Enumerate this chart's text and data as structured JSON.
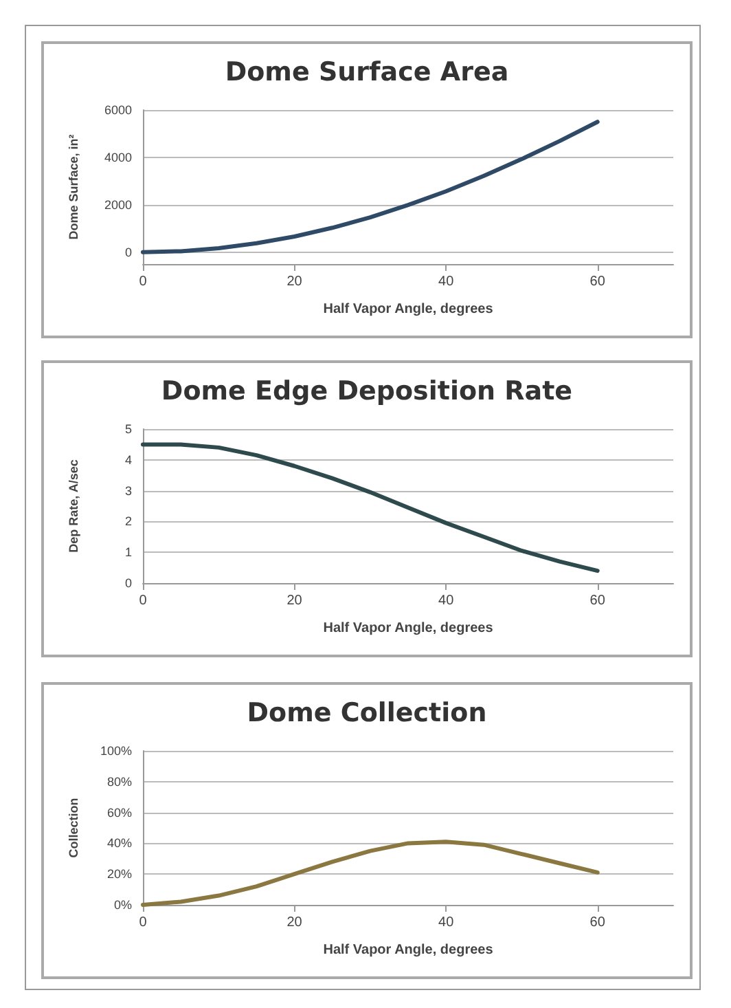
{
  "chart_data": [
    {
      "type": "line",
      "title": "Dome Surface Area",
      "xlabel": "Half Vapor Angle, degrees",
      "ylabel": "Dome Surface, in²",
      "x": [
        0,
        5,
        10,
        15,
        20,
        25,
        30,
        35,
        40,
        45,
        50,
        55,
        60
      ],
      "values": [
        0,
        40,
        170,
        380,
        660,
        1030,
        1470,
        1990,
        2570,
        3220,
        3930,
        4690,
        5500
      ],
      "color": "#2f4a66",
      "xlim": [
        0,
        70
      ],
      "xticks": [
        0,
        20,
        40,
        60
      ],
      "ylim": [
        -500,
        6000
      ],
      "yticks": [
        0,
        2000,
        4000,
        6000
      ],
      "grid": "y",
      "marker": "none",
      "line_style": "solid"
    },
    {
      "type": "line",
      "title": "Dome Edge Deposition Rate",
      "xlabel": "Half Vapor Angle, degrees",
      "ylabel": "Dep Rate, A/sec",
      "x": [
        0,
        5,
        10,
        15,
        20,
        25,
        30,
        35,
        40,
        45,
        50,
        55,
        60
      ],
      "values": [
        4.5,
        4.5,
        4.4,
        4.15,
        3.8,
        3.4,
        2.95,
        2.45,
        1.95,
        1.5,
        1.05,
        0.7,
        0.4
      ],
      "color": "#2e4a4c",
      "xlim": [
        0,
        70
      ],
      "xticks": [
        0,
        20,
        40,
        60
      ],
      "ylim": [
        0,
        5
      ],
      "yticks": [
        0,
        1,
        2,
        3,
        4,
        5
      ],
      "grid": "y",
      "marker": "none",
      "line_style": "solid"
    },
    {
      "type": "line",
      "title": "Dome Collection",
      "xlabel": "Half Vapor Angle, degrees",
      "ylabel": "Collection",
      "x": [
        0,
        5,
        10,
        15,
        20,
        25,
        30,
        35,
        40,
        45,
        50,
        55,
        60
      ],
      "values": [
        0,
        2,
        6,
        12,
        20,
        28,
        35,
        40,
        41,
        39,
        33,
        27,
        21
      ],
      "color": "#8a7840",
      "xlim": [
        0,
        70
      ],
      "xticks": [
        0,
        20,
        40,
        60
      ],
      "ylim": [
        0,
        100
      ],
      "yticks": [
        {
          "value": 0,
          "label": "0%"
        },
        {
          "value": 20,
          "label": "20%"
        },
        {
          "value": 40,
          "label": "40%"
        },
        {
          "value": 60,
          "label": "60%"
        },
        {
          "value": 80,
          "label": "80%"
        },
        {
          "value": 100,
          "label": "100%"
        }
      ],
      "grid": "y",
      "marker": "none",
      "line_style": "solid"
    }
  ]
}
